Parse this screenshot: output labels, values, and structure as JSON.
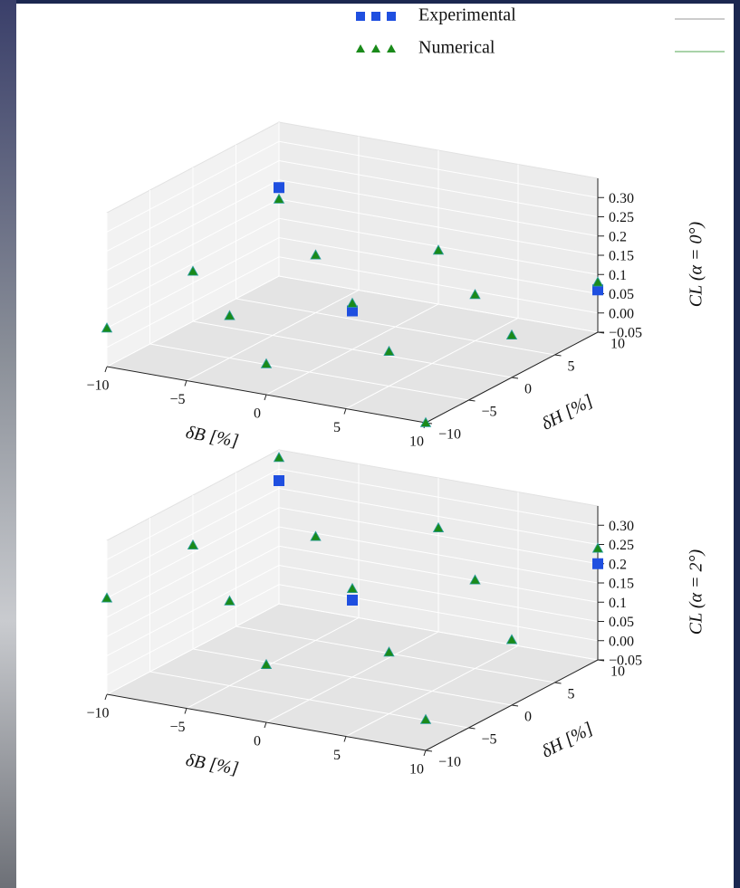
{
  "chart_data": [
    {
      "type": "scatter3d",
      "xlabel": "δB [%]",
      "ylabel": "δH [%]",
      "zlabel": "CL (α = 0°)",
      "xlim": [
        -10,
        10
      ],
      "ylim": [
        -10,
        10
      ],
      "zlim": [
        -0.05,
        0.35
      ],
      "xticks": [
        {
          "value": -10,
          "label": "−10"
        },
        {
          "value": -5,
          "label": "−5"
        },
        0,
        5,
        10
      ],
      "yticks": [
        {
          "value": -10,
          "label": "−10"
        },
        {
          "value": -5,
          "label": "−5"
        },
        0,
        5,
        10
      ],
      "zticks": [
        {
          "value": -0.05,
          "label": "−0.05"
        },
        {
          "value": 0,
          "label": "0.00"
        },
        0.05,
        0.1,
        0.15,
        0.2,
        0.25,
        {
          "value": 0.3,
          "label": "0.30"
        }
      ],
      "series": [
        {
          "name": "Experimental",
          "color": "#1f4fe0",
          "marker": "square",
          "x": [
            -10,
            0,
            10
          ],
          "y": [
            10,
            0,
            10
          ],
          "z": [
            0.18,
            0.05,
            0.06
          ]
        },
        {
          "name": "Numerical",
          "color": "#1a8a1a",
          "marker": "triangle",
          "surface_color": "#8fd6a8",
          "x": [
            -10,
            0,
            10,
            -10,
            0,
            10,
            -10,
            0,
            10,
            -5,
            5,
            -5,
            5
          ],
          "y": [
            -10,
            -10,
            -10,
            0,
            0,
            0,
            10,
            10,
            10,
            -5,
            -5,
            5,
            5
          ],
          "z": [
            0.05,
            0.03,
            -0.05,
            0.08,
            0.07,
            0.06,
            0.15,
            0.09,
            0.08,
            0.06,
            0.04,
            0.1,
            0.07
          ]
        }
      ]
    },
    {
      "type": "scatter3d",
      "xlabel": "δB [%]",
      "ylabel": "δH [%]",
      "zlabel": "CL (α = 2°)",
      "xlim": [
        -10,
        10
      ],
      "ylim": [
        -10,
        10
      ],
      "zlim": [
        -0.05,
        0.35
      ],
      "xticks": [
        {
          "value": -10,
          "label": "−10"
        },
        {
          "value": -5,
          "label": "−5"
        },
        0,
        5,
        10
      ],
      "yticks": [
        {
          "value": -10,
          "label": "−10"
        },
        {
          "value": -5,
          "label": "−5"
        },
        0,
        5,
        10
      ],
      "zticks": [
        {
          "value": -0.05,
          "label": "−0.05"
        },
        {
          "value": 0,
          "label": "0.00"
        },
        0.05,
        0.1,
        0.15,
        0.2,
        0.25,
        {
          "value": 0.3,
          "label": "0.30"
        }
      ],
      "series": [
        {
          "color": "#1f4fe0",
          "marker": "square",
          "x": [
            -10,
            0,
            10
          ],
          "y": [
            10,
            0,
            10
          ],
          "z": [
            0.27,
            0.15,
            0.2
          ]
        },
        {
          "color": "#1a8a1a",
          "marker": "triangle",
          "surface_color": "#8fd6a8",
          "x": [
            -10,
            0,
            10,
            -10,
            0,
            10,
            -10,
            0,
            10,
            -5,
            5,
            -5,
            5
          ],
          "y": [
            -10,
            -10,
            -10,
            0,
            0,
            0,
            10,
            10,
            10,
            -5,
            -5,
            5,
            5
          ],
          "z": [
            0.2,
            0.1,
            0.03,
            0.22,
            0.18,
            0.12,
            0.33,
            0.22,
            0.24,
            0.17,
            0.11,
            0.22,
            0.18
          ]
        }
      ]
    }
  ]
}
